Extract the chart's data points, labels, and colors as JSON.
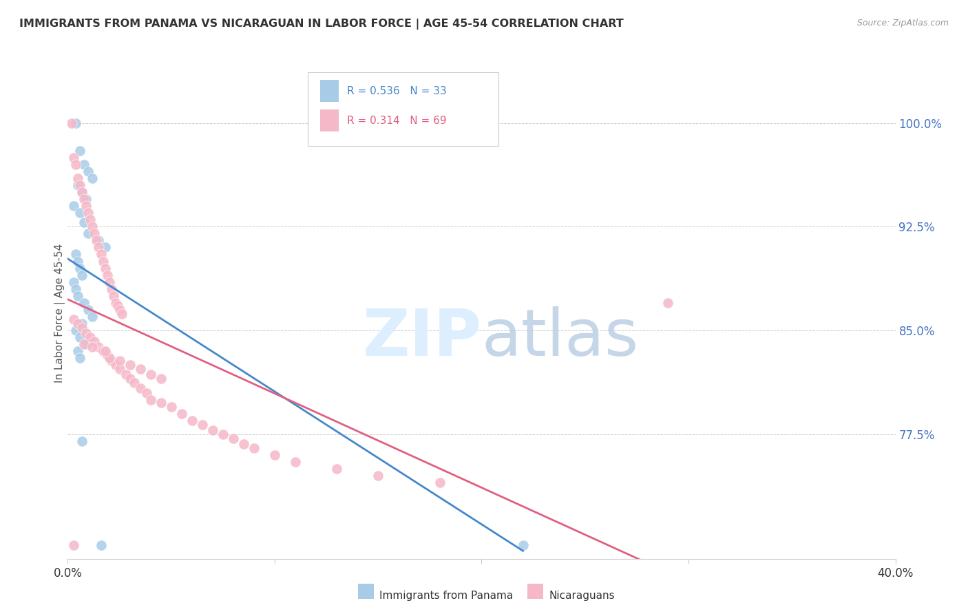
{
  "title": "IMMIGRANTS FROM PANAMA VS NICARAGUAN IN LABOR FORCE | AGE 45-54 CORRELATION CHART",
  "source": "Source: ZipAtlas.com",
  "ylabel": "In Labor Force | Age 45-54",
  "yticks": [
    "77.5%",
    "85.0%",
    "92.5%",
    "100.0%"
  ],
  "ytick_vals": [
    0.775,
    0.85,
    0.925,
    1.0
  ],
  "xlim": [
    0.0,
    0.4
  ],
  "ylim": [
    0.685,
    1.04
  ],
  "legend_blue_r": "0.536",
  "legend_blue_n": "33",
  "legend_pink_r": "0.314",
  "legend_pink_n": "69",
  "blue_color": "#a8cce8",
  "pink_color": "#f5b8c8",
  "line_blue": "#4488cc",
  "line_pink": "#e06080",
  "watermark_color": "#ddeeff",
  "legend_label_blue": "Immigrants from Panama",
  "legend_label_pink": "Nicaraguans",
  "panama_x": [
    0.004,
    0.006,
    0.008,
    0.01,
    0.012,
    0.005,
    0.007,
    0.009,
    0.003,
    0.006,
    0.008,
    0.01,
    0.015,
    0.018,
    0.004,
    0.005,
    0.006,
    0.007,
    0.003,
    0.004,
    0.005,
    0.008,
    0.01,
    0.012,
    0.007,
    0.004,
    0.006,
    0.009,
    0.005,
    0.006,
    0.007,
    0.016,
    0.22
  ],
  "panama_y": [
    1.0,
    0.98,
    0.97,
    0.965,
    0.96,
    0.955,
    0.95,
    0.945,
    0.94,
    0.935,
    0.928,
    0.92,
    0.915,
    0.91,
    0.905,
    0.9,
    0.895,
    0.89,
    0.885,
    0.88,
    0.875,
    0.87,
    0.865,
    0.86,
    0.855,
    0.85,
    0.845,
    0.84,
    0.835,
    0.83,
    0.77,
    0.695,
    0.695
  ],
  "nicaragua_x": [
    0.002,
    0.003,
    0.004,
    0.005,
    0.006,
    0.007,
    0.008,
    0.009,
    0.01,
    0.011,
    0.012,
    0.013,
    0.014,
    0.015,
    0.016,
    0.017,
    0.018,
    0.019,
    0.02,
    0.021,
    0.022,
    0.023,
    0.024,
    0.025,
    0.026,
    0.003,
    0.005,
    0.007,
    0.009,
    0.011,
    0.013,
    0.015,
    0.017,
    0.019,
    0.021,
    0.023,
    0.025,
    0.028,
    0.03,
    0.032,
    0.035,
    0.038,
    0.04,
    0.045,
    0.05,
    0.055,
    0.06,
    0.065,
    0.07,
    0.075,
    0.08,
    0.085,
    0.09,
    0.1,
    0.11,
    0.13,
    0.15,
    0.18,
    0.02,
    0.025,
    0.03,
    0.035,
    0.04,
    0.045,
    0.008,
    0.012,
    0.018,
    0.003,
    0.29
  ],
  "nicaragua_y": [
    1.0,
    0.975,
    0.97,
    0.96,
    0.955,
    0.95,
    0.945,
    0.94,
    0.935,
    0.93,
    0.925,
    0.92,
    0.915,
    0.91,
    0.905,
    0.9,
    0.895,
    0.89,
    0.885,
    0.88,
    0.875,
    0.87,
    0.868,
    0.865,
    0.862,
    0.858,
    0.855,
    0.852,
    0.848,
    0.845,
    0.842,
    0.838,
    0.835,
    0.832,
    0.828,
    0.825,
    0.822,
    0.818,
    0.815,
    0.812,
    0.808,
    0.805,
    0.8,
    0.798,
    0.795,
    0.79,
    0.785,
    0.782,
    0.778,
    0.775,
    0.772,
    0.768,
    0.765,
    0.76,
    0.755,
    0.75,
    0.745,
    0.74,
    0.83,
    0.828,
    0.825,
    0.822,
    0.818,
    0.815,
    0.84,
    0.838,
    0.835,
    0.695,
    0.87
  ]
}
